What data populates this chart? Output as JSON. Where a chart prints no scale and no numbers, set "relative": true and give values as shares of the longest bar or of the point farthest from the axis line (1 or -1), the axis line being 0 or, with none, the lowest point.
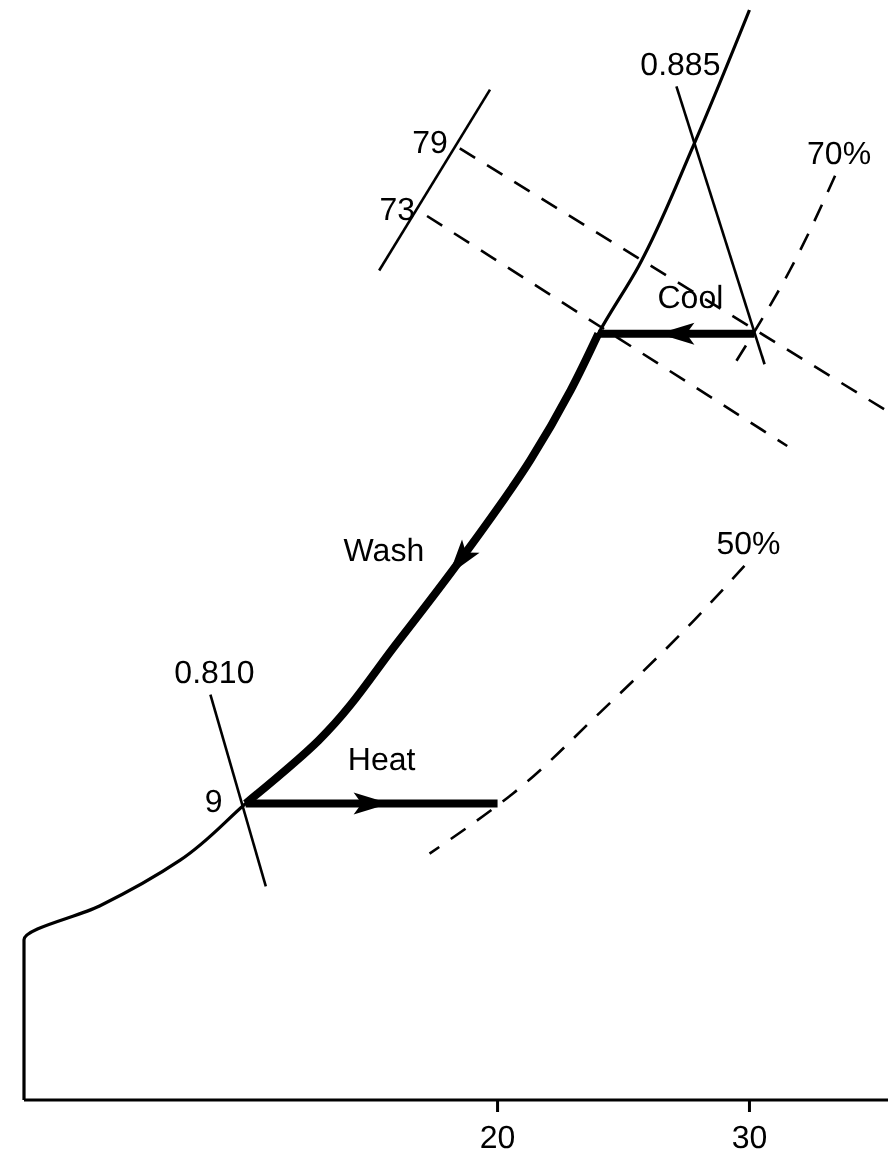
{
  "chart_data": {
    "type": "line",
    "relative": true,
    "xlim": [
      1.2,
      35.5
    ],
    "xticks": [
      20,
      30
    ],
    "series": [
      {
        "color": "#000000",
        "line_style": "solid",
        "x": [
          1.2,
          1.2,
          4.2,
          7.4,
          10.0,
          12.9,
          16.1,
          18.7,
          21.3,
          22.9,
          24.0,
          25.6,
          27.8,
          30.0
        ],
        "values": [
          0,
          0.147,
          0.178,
          0.22,
          0.272,
          0.33,
          0.422,
          0.501,
          0.587,
          0.651,
          0.703,
          0.765,
          0.877,
          1.0
        ]
      },
      {
        "name": "Wash",
        "color": "#000000",
        "line_style": "solid",
        "x": [
          24.0,
          22.9,
          21.3,
          18.7,
          16.1,
          12.9,
          10.0
        ],
        "values": [
          0.703,
          0.651,
          0.587,
          0.501,
          0.422,
          0.33,
          0.272
        ]
      },
      {
        "name": "Heat",
        "color": "#000000",
        "line_style": "solid",
        "x": [
          10.0,
          20.0
        ],
        "values": [
          0.272,
          0.272
        ]
      },
      {
        "name": "Cool",
        "color": "#000000",
        "line_style": "solid",
        "x": [
          30.2,
          24.0
        ],
        "values": [
          0.703,
          0.703
        ]
      },
      {
        "name": "79",
        "color": "#000000",
        "line_style": "dashed",
        "x": [
          18.5,
          35.4
        ],
        "values": [
          0.873,
          0.633
        ]
      },
      {
        "name": "73",
        "color": "#000000",
        "line_style": "dashed",
        "x": [
          17.2,
          31.5
        ],
        "values": [
          0.811,
          0.6
        ]
      },
      {
        "color": "#000000",
        "line_style": "solid",
        "x": [
          19.7,
          15.3
        ],
        "values": [
          0.927,
          0.761
        ]
      },
      {
        "name": "0.885",
        "color": "#000000",
        "line_style": "solid",
        "x": [
          27.1,
          30.6
        ],
        "values": [
          0.93,
          0.675
        ]
      },
      {
        "name": "0.810",
        "color": "#000000",
        "line_style": "solid",
        "x": [
          8.6,
          10.8
        ],
        "values": [
          0.372,
          0.196
        ]
      },
      {
        "name": "70%",
        "color": "#000000",
        "line_style": "dashed",
        "x": [
          33.4,
          31.6,
          29.4
        ],
        "values": [
          0.848,
          0.761,
          0.675
        ]
      },
      {
        "name": "50%",
        "color": "#000000",
        "line_style": "dashed",
        "x": [
          29.8,
          27.8,
          24.0,
          20.6,
          17.3
        ],
        "values": [
          0.49,
          0.44,
          0.354,
          0.281,
          0.226
        ]
      }
    ],
    "annotations": [
      {
        "text": "9",
        "x": 10.0,
        "y": 0.272
      }
    ]
  }
}
